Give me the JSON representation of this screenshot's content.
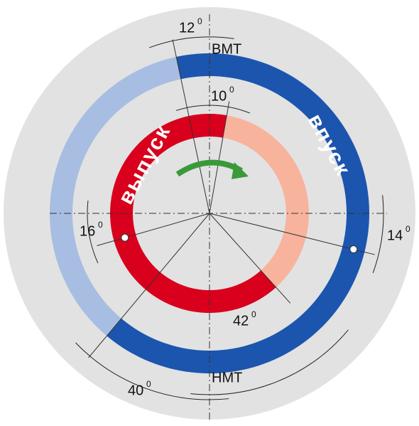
{
  "labels": {
    "tdc": "ВМТ",
    "bdc": "НМТ",
    "intake": "впуск",
    "exhaust": "выпуск"
  },
  "degree_mark": "0",
  "angles": {
    "intake_open_before_tdc": 12,
    "exhaust_close_after_tdc": 10,
    "mark_right_below_horizontal": 14,
    "mark_left_below_horizontal": 16,
    "exhaust_open_before_bdc": 42,
    "intake_close_after_bdc": 40
  }
}
